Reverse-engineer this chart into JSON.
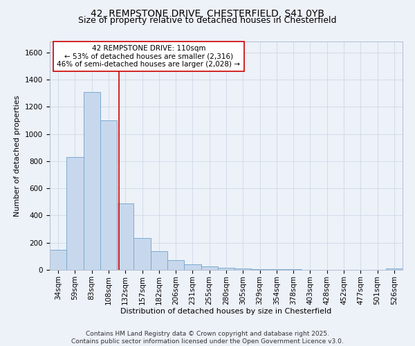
{
  "title": "42, REMPSTONE DRIVE, CHESTERFIELD, S41 0YB",
  "subtitle": "Size of property relative to detached houses in Chesterfield",
  "xlabel": "Distribution of detached houses by size in Chesterfield",
  "ylabel": "Number of detached properties",
  "bin_labels": [
    "34sqm",
    "59sqm",
    "83sqm",
    "108sqm",
    "132sqm",
    "157sqm",
    "182sqm",
    "206sqm",
    "231sqm",
    "255sqm",
    "280sqm",
    "305sqm",
    "329sqm",
    "354sqm",
    "378sqm",
    "403sqm",
    "428sqm",
    "452sqm",
    "477sqm",
    "501sqm",
    "526sqm"
  ],
  "bar_heights": [
    150,
    830,
    1310,
    1100,
    490,
    235,
    135,
    70,
    40,
    25,
    15,
    10,
    5,
    5,
    5,
    0,
    0,
    0,
    0,
    0,
    10
  ],
  "bar_color": "#c8d8ec",
  "bar_edge_color": "#7aaad0",
  "bar_linewidth": 0.7,
  "property_line_x": 3.6,
  "property_line_color": "#cc0000",
  "property_line_linewidth": 1.2,
  "ylim": [
    0,
    1680
  ],
  "yticks": [
    0,
    200,
    400,
    600,
    800,
    1000,
    1200,
    1400,
    1600
  ],
  "annotation_text": "42 REMPSTONE DRIVE: 110sqm\n← 53% of detached houses are smaller (2,316)\n46% of semi-detached houses are larger (2,028) →",
  "annotation_box_color": "white",
  "annotation_edge_color": "#cc0000",
  "grid_color": "#cdd8e8",
  "background_color": "#edf1f8",
  "footer_line1": "Contains HM Land Registry data © Crown copyright and database right 2025.",
  "footer_line2": "Contains public sector information licensed under the Open Government Licence v3.0.",
  "title_fontsize": 10,
  "subtitle_fontsize": 9,
  "axis_label_fontsize": 8,
  "tick_fontsize": 7.5,
  "annotation_fontsize": 7.5,
  "footer_fontsize": 6.5
}
